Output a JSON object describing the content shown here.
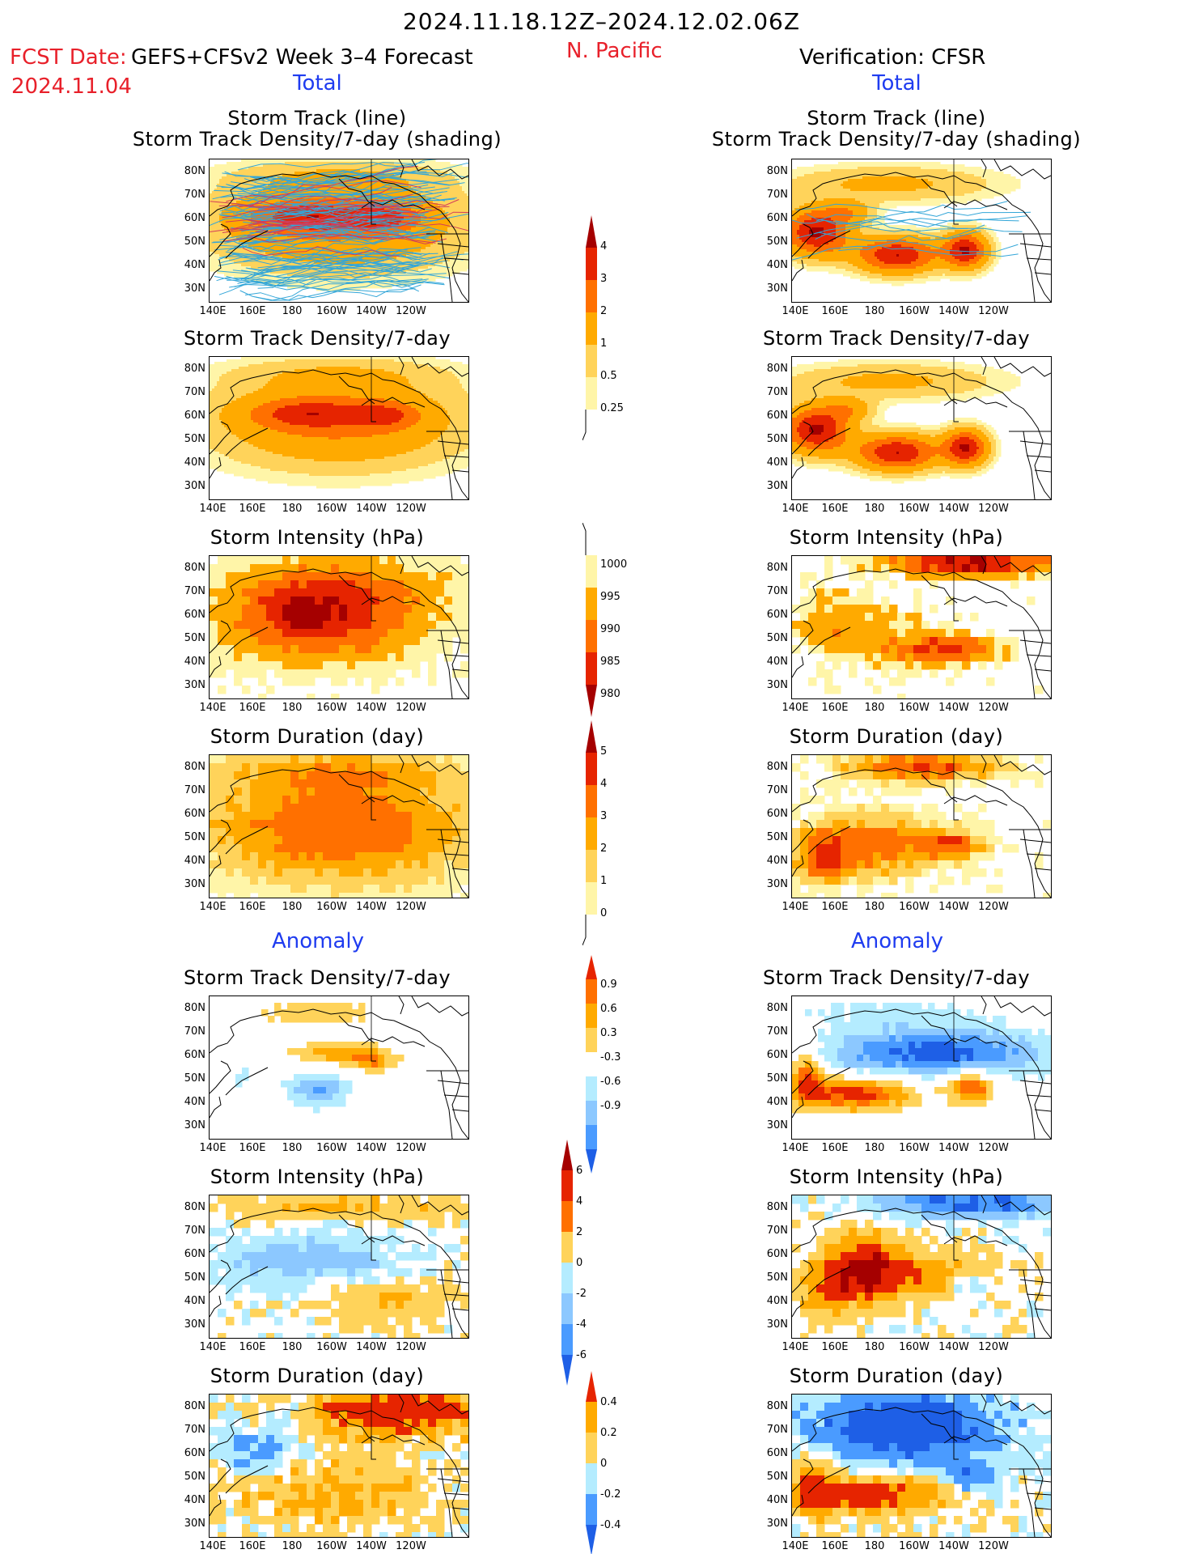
{
  "header": {
    "date_range": "2024.11.18.12Z–2024.12.02.06Z",
    "fcst_prefix": "FCST Date:",
    "model_label": "GEFS+CFSv2 Week 3–4 Forecast",
    "fcst_date": "2024.11.04",
    "region": "N. Pacific",
    "verification": "Verification: CFSR",
    "left_section_total": "Total",
    "right_section_total": "Total",
    "left_section_anomaly": "Anomaly",
    "right_section_anomaly": "Anomaly"
  },
  "axes": {
    "lat_ticks": [
      "80N",
      "70N",
      "60N",
      "50N",
      "40N",
      "30N"
    ],
    "lon_ticks": [
      "140E",
      "160E",
      "180",
      "160W",
      "140W",
      "120W"
    ]
  },
  "colors": {
    "lightyellow": "#fff5a8",
    "yellow": "#ffd35a",
    "lightorange": "#ffaa00",
    "orange": "#ff7000",
    "red": "#e62400",
    "darkred": "#a50000",
    "lightblue": "#b4ecff",
    "midblue": "#8cc8ff",
    "blue": "#4a9bff",
    "darkblue": "#1e5fe6",
    "track": "#33a6d8",
    "track_red": "#d23c5a"
  },
  "panels": {
    "left_track_title": [
      "Storm Track (line)",
      "Storm Track Density/7-day (shading)"
    ],
    "right_track_title": [
      "Storm Track (line)",
      "Storm Track Density/7-day (shading)"
    ],
    "left_density_title": "Storm Track Density/7-day",
    "right_density_title": "Storm Track Density/7-day",
    "left_intensity_title": "Storm Intensity (hPa)",
    "right_intensity_title": "Storm Intensity (hPa)",
    "left_duration_title": "Storm Duration (day)",
    "right_duration_title": "Storm Duration (day)",
    "left_anom_density_title": "Storm Track Density/7-day",
    "right_anom_density_title": "Storm Track Density/7-day",
    "left_anom_intensity_title": "Storm Intensity (hPa)",
    "right_anom_intensity_title": "Storm Intensity (hPa)",
    "left_anom_duration_title": "Storm Duration (day)",
    "right_anom_duration_title": "Storm Duration (day)"
  },
  "chart_data": [
    {
      "type": "heatmap",
      "title": "Storm Track Density/7-day",
      "colorbar": {
        "levels": [
          "0.25",
          "0.5",
          "1",
          "2",
          "3",
          "4"
        ],
        "colors": [
          "#fff5a8",
          "#ffd35a",
          "#ffaa00",
          "#ff7000",
          "#e62400",
          "#a50000"
        ]
      }
    },
    {
      "type": "heatmap",
      "title": "Storm Intensity (hPa)",
      "colorbar": {
        "levels": [
          "1000",
          "995",
          "990",
          "985",
          "980"
        ],
        "colors": [
          "#fff5a8",
          "#ffaa00",
          "#ff7000",
          "#e62400",
          "#a50000"
        ]
      }
    },
    {
      "type": "heatmap",
      "title": "Storm Duration (day)",
      "colorbar": {
        "levels": [
          "0",
          "1",
          "2",
          "3",
          "4",
          "5"
        ],
        "colors": [
          "#fff5a8",
          "#ffd35a",
          "#ffaa00",
          "#ff7000",
          "#e62400",
          "#a50000"
        ]
      }
    },
    {
      "type": "heatmap",
      "title": "Storm Track Density/7-day anomaly",
      "colorbar": {
        "levels": [
          "0.9",
          "0.6",
          "0.3",
          "-0.3",
          "-0.6",
          "-0.9"
        ],
        "colors": [
          "#e62400",
          "#ff7000",
          "#ffaa00",
          "#ffd35a",
          "#ffffff",
          "#b4ecff",
          "#8cc8ff",
          "#4a9bff",
          "#1e5fe6"
        ]
      }
    },
    {
      "type": "heatmap",
      "title": "Storm Intensity (hPa) anomaly",
      "colorbar": {
        "levels": [
          "6",
          "4",
          "2",
          "0",
          "-2",
          "-4",
          "-6"
        ],
        "colors": [
          "#a50000",
          "#e62400",
          "#ff7000",
          "#ffd35a",
          "#b4ecff",
          "#8cc8ff",
          "#4a9bff",
          "#1e5fe6"
        ]
      }
    },
    {
      "type": "heatmap",
      "title": "Storm Duration (day) anomaly",
      "colorbar": {
        "levels": [
          "0.4",
          "0.2",
          "0",
          "-0.2",
          "-0.4"
        ],
        "colors": [
          "#e62400",
          "#ffaa00",
          "#ffd35a",
          "#b4ecff",
          "#4a9bff",
          "#1e5fe6"
        ]
      }
    }
  ]
}
